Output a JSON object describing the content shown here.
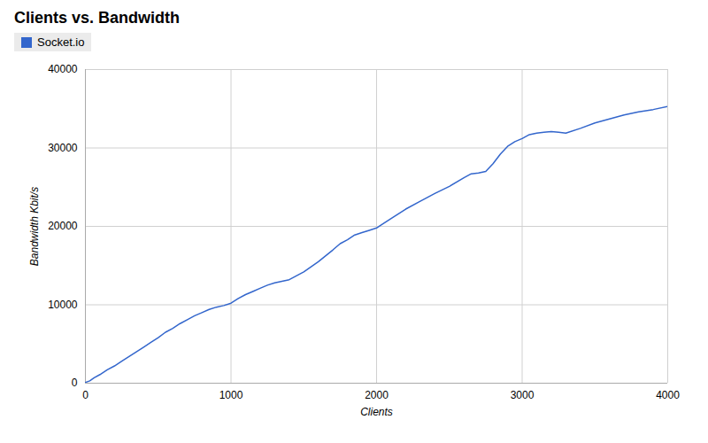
{
  "chart_data": {
    "type": "line",
    "title": "Clients vs. Bandwidth",
    "xlabel": "Clients",
    "ylabel": "Bandwidth Kbit/s",
    "x": [
      0,
      30,
      60,
      100,
      150,
      200,
      250,
      300,
      350,
      400,
      450,
      500,
      550,
      600,
      650,
      700,
      750,
      800,
      850,
      900,
      950,
      1000,
      1050,
      1100,
      1150,
      1200,
      1250,
      1300,
      1350,
      1400,
      1500,
      1600,
      1700,
      1750,
      1800,
      1850,
      1900,
      1950,
      2000,
      2100,
      2200,
      2300,
      2400,
      2500,
      2600,
      2650,
      2700,
      2750,
      2800,
      2850,
      2900,
      2950,
      3000,
      3050,
      3100,
      3150,
      3200,
      3250,
      3300,
      3400,
      3500,
      3600,
      3700,
      3800,
      3900,
      4000
    ],
    "series": [
      {
        "name": "Socket.io",
        "color": "#3366cc",
        "values": [
          100,
          300,
          700,
          1100,
          1700,
          2200,
          2800,
          3400,
          4000,
          4600,
          5200,
          5800,
          6500,
          7000,
          7600,
          8100,
          8600,
          9000,
          9400,
          9700,
          9900,
          10200,
          10800,
          11300,
          11700,
          12100,
          12500,
          12800,
          13000,
          13200,
          14200,
          15500,
          17000,
          17800,
          18300,
          18900,
          19200,
          19500,
          19800,
          21000,
          22200,
          23200,
          24200,
          25100,
          26200,
          26700,
          26800,
          27000,
          28000,
          29200,
          30200,
          30800,
          31200,
          31700,
          31900,
          32000,
          32100,
          32000,
          31900,
          32500,
          33200,
          33700,
          34200,
          34600,
          34900,
          35300
        ]
      }
    ],
    "xlim": [
      0,
      4000
    ],
    "ylim": [
      0,
      40000
    ],
    "xticks": [
      0,
      1000,
      2000,
      3000,
      4000
    ],
    "yticks": [
      0,
      10000,
      20000,
      30000,
      40000
    ],
    "grid": true,
    "legend": "upper left"
  }
}
